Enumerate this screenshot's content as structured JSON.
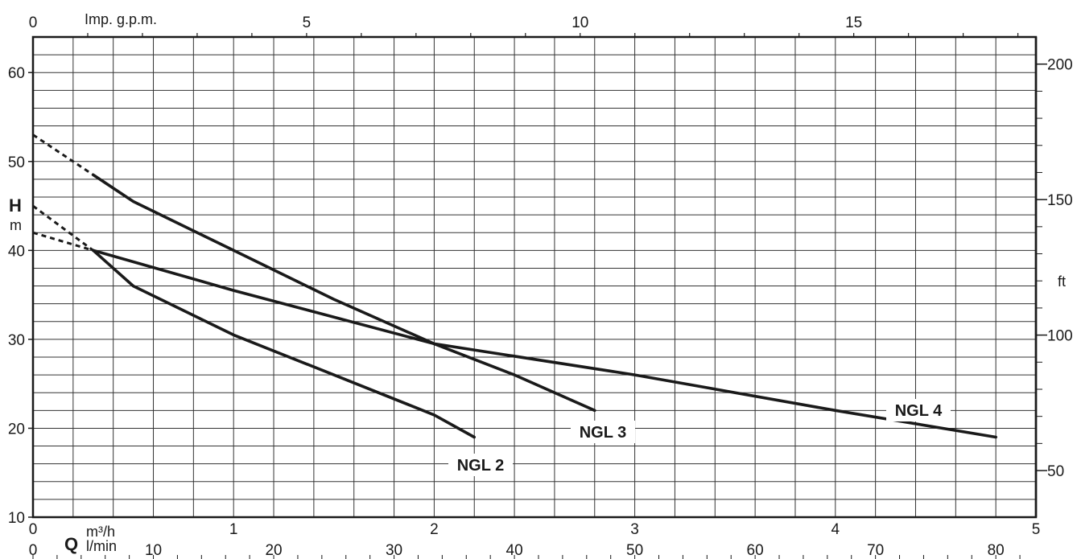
{
  "chart_data": {
    "type": "line",
    "title": "",
    "x_primary": {
      "label": "Q",
      "unit": "m³/h",
      "range": [
        0,
        5
      ],
      "ticks": [
        0,
        1,
        2,
        3,
        4,
        5
      ]
    },
    "x_secondary_bottom": {
      "unit": "l/min",
      "range": [
        0,
        83.333
      ],
      "ticks": [
        0,
        10,
        20,
        30,
        40,
        50,
        60,
        70,
        80
      ]
    },
    "x_secondary_top": {
      "unit": "Imp. g.p.m.",
      "range": [
        0,
        18.33
      ],
      "ticks": [
        0,
        5,
        10,
        15
      ]
    },
    "y_primary": {
      "label": "H",
      "unit": "m",
      "range": [
        10,
        64
      ],
      "ticks": [
        10,
        20,
        30,
        40,
        50,
        60
      ]
    },
    "y_secondary": {
      "unit": "ft",
      "range": [
        32.8,
        210
      ],
      "ticks": [
        50,
        100,
        150,
        200
      ]
    },
    "grid": true,
    "series": [
      {
        "name": "NGL 2",
        "x": [
          0.3,
          0.5,
          1.0,
          1.5,
          2.0,
          2.2
        ],
        "y": [
          40,
          36,
          30.5,
          26,
          21.5,
          19
        ],
        "extrapolated": {
          "x": [
            0,
            0.3
          ],
          "y": [
            42,
            40
          ]
        }
      },
      {
        "name": "NGL 3",
        "x": [
          0.3,
          0.5,
          1.0,
          1.5,
          2.0,
          2.4,
          2.8
        ],
        "y": [
          48.5,
          45.5,
          40,
          34.5,
          29.5,
          26,
          22
        ],
        "extrapolated": {
          "x": [
            0,
            0.3
          ],
          "y": [
            53,
            48.5
          ]
        }
      },
      {
        "name": "NGL 4",
        "x": [
          0.3,
          1.0,
          2.0,
          3.0,
          4.0,
          4.8
        ],
        "y": [
          40,
          35.5,
          29.5,
          26,
          22,
          19
        ],
        "extrapolated": {
          "x": [
            0,
            0.3
          ],
          "y": [
            45,
            40
          ]
        }
      }
    ],
    "annotations": [
      "NGL 2",
      "NGL 3",
      "NGL 4"
    ]
  }
}
